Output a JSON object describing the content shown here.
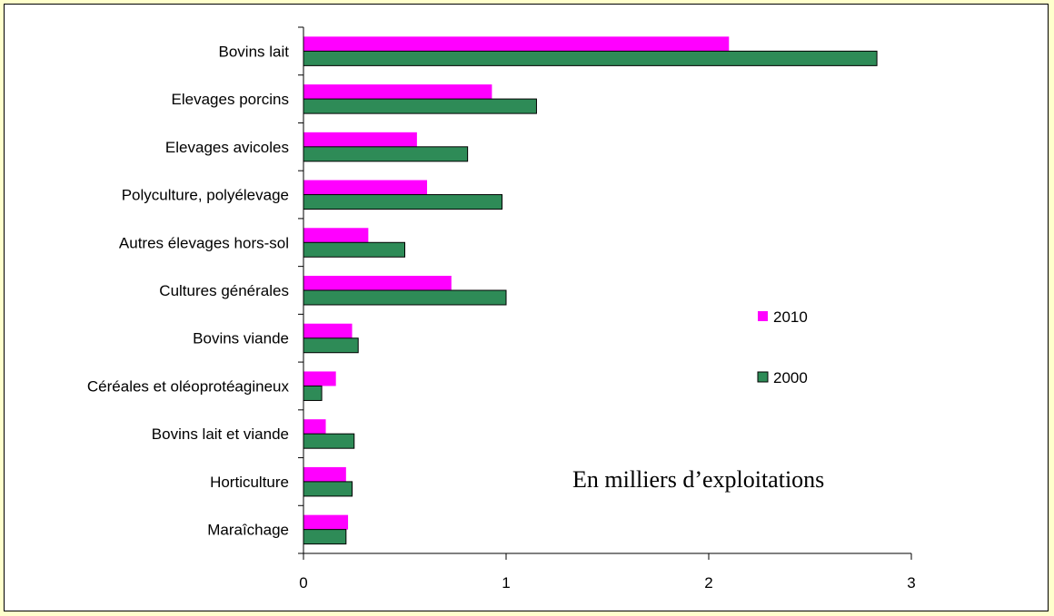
{
  "chart_data": {
    "type": "bar",
    "orientation": "horizontal",
    "categories": [
      "Bovins lait",
      "Elevages porcins",
      "Elevages avicoles",
      "Polyculture, polyélevage",
      "Autres élevages hors-sol",
      "Cultures générales",
      "Bovins viande",
      "Céréales et oléoprotéagineux",
      "Bovins lait et viande",
      "Horticulture",
      "Maraîchage"
    ],
    "series": [
      {
        "name": "2010",
        "color": "#ff00ff",
        "values": [
          2.1,
          0.93,
          0.56,
          0.61,
          0.32,
          0.73,
          0.24,
          0.16,
          0.11,
          0.21,
          0.22
        ]
      },
      {
        "name": "2000",
        "color": "#2e8b57",
        "values": [
          2.83,
          1.15,
          0.81,
          0.98,
          0.5,
          1.0,
          0.27,
          0.09,
          0.25,
          0.24,
          0.21
        ]
      }
    ],
    "xlim": [
      0,
      3
    ],
    "xticks": [
      "0",
      "1",
      "2",
      "3"
    ],
    "grid": false,
    "legend_position": "right",
    "annotation": "En milliers d’exploitations"
  }
}
